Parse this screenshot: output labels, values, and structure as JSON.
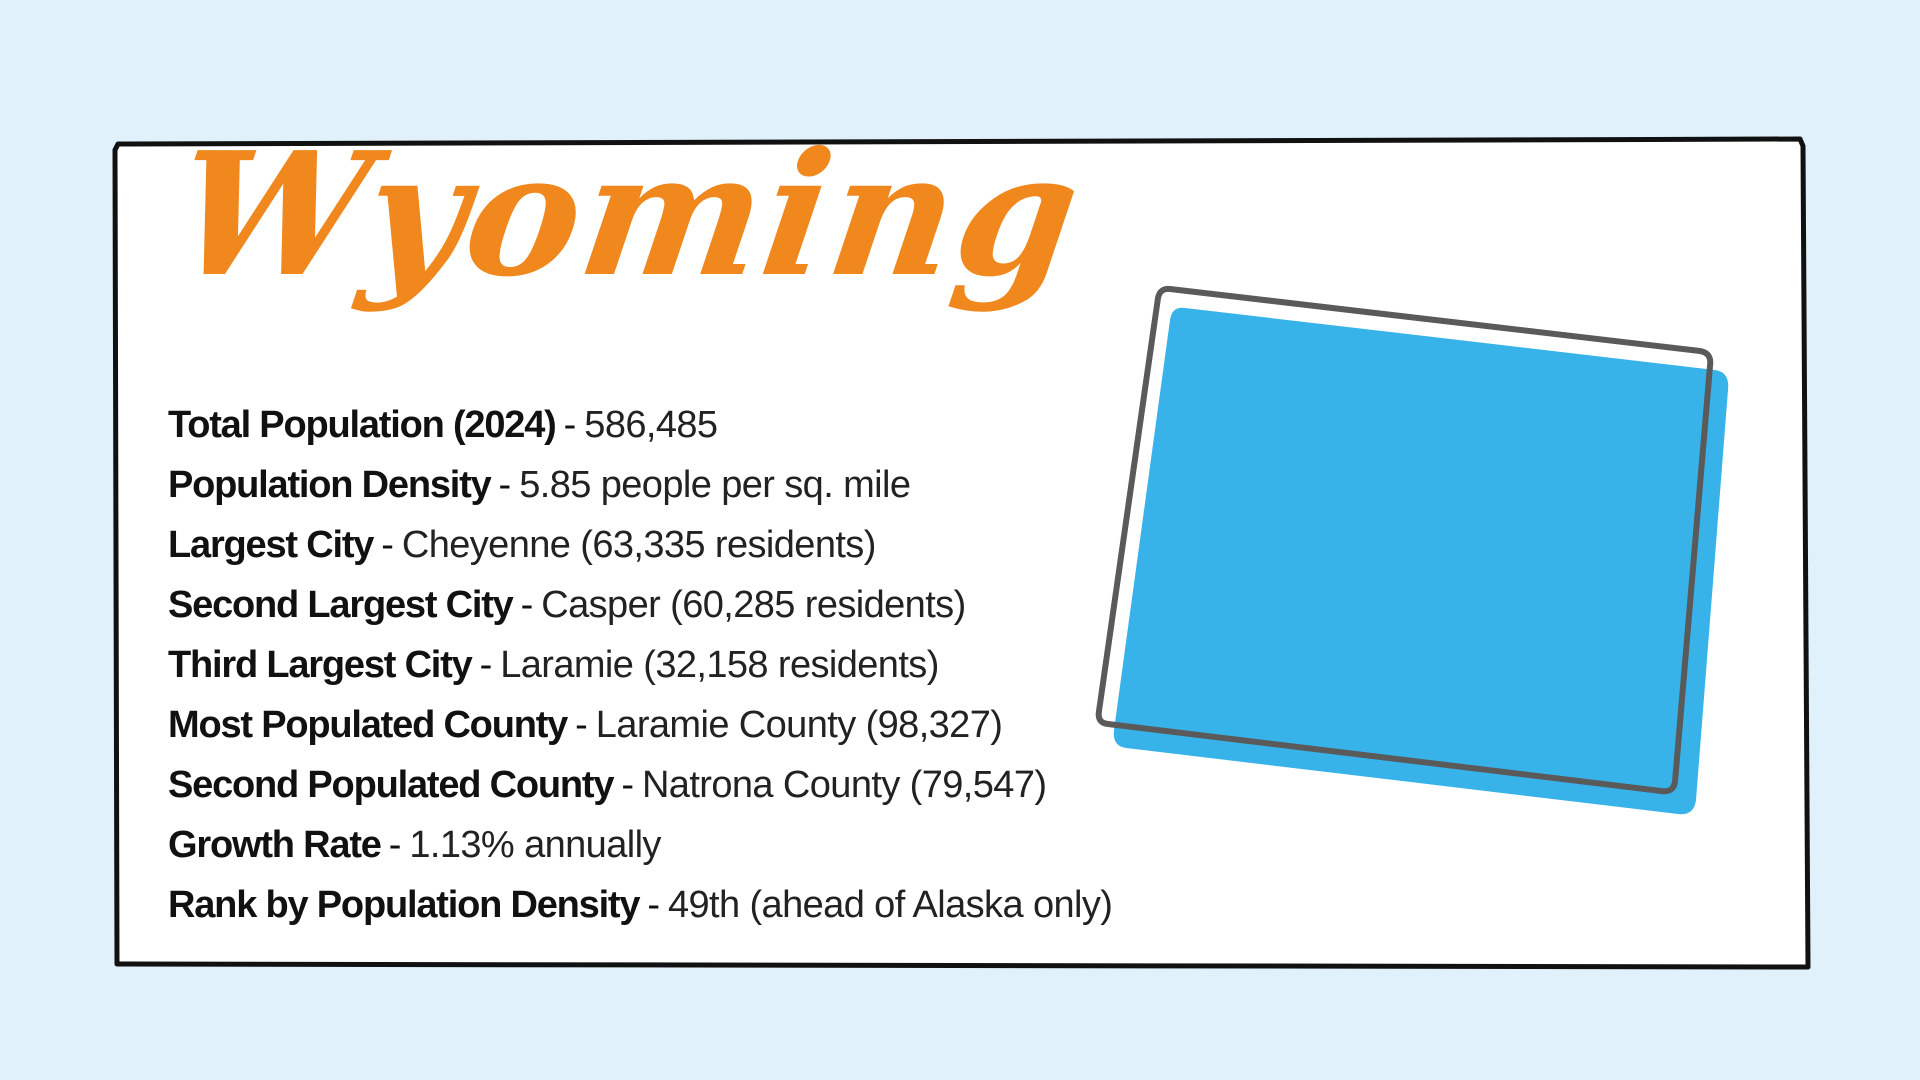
{
  "title": "Wyoming",
  "colors": {
    "background": "#e0f1fb",
    "title": "#f0881e",
    "state_fill": "#38b3ea",
    "state_outline": "#5a5a5a",
    "frame": "#111111"
  },
  "facts": [
    {
      "label": "Total Population (2024)",
      "sep": "-",
      "value": "586,485"
    },
    {
      "label": "Population Density",
      "sep": "-",
      "value": "5.85 people per sq. mile"
    },
    {
      "label": "Largest City",
      "sep": "-",
      "value": "Cheyenne (63,335 residents)"
    },
    {
      "label": "Second Largest City",
      "sep": "-",
      "value": "Casper (60,285 residents)"
    },
    {
      "label": "Third Largest City",
      "sep": "-",
      "value": "Laramie (32,158 residents)"
    },
    {
      "label": "Most Populated County",
      "sep": "-",
      "value": "Laramie County (98,327)"
    },
    {
      "label": "Second Populated County",
      "sep": "-",
      "value": "Natrona County (79,547)"
    },
    {
      "label": "Growth Rate",
      "sep": "-",
      "value": "1.13% annually"
    },
    {
      "label": "Rank by Population Density",
      "sep": "-",
      "value": "49th (ahead of Alaska only)"
    }
  ],
  "map": {
    "icon": "wyoming-state-outline-icon"
  }
}
